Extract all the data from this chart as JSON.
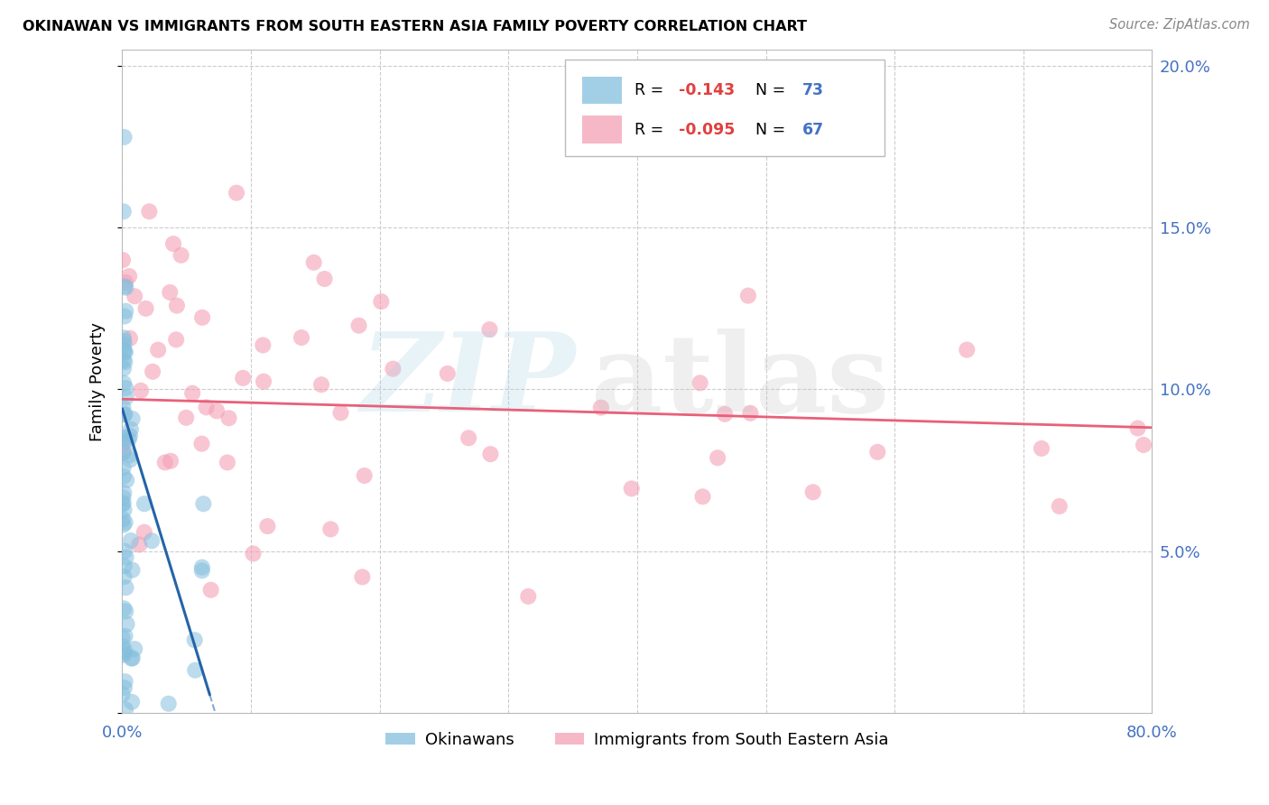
{
  "title": "OKINAWAN VS IMMIGRANTS FROM SOUTH EASTERN ASIA FAMILY POVERTY CORRELATION CHART",
  "source": "Source: ZipAtlas.com",
  "ylabel": "Family Poverty",
  "x_ticks": [
    0.0,
    0.1,
    0.2,
    0.3,
    0.4,
    0.5,
    0.6,
    0.7,
    0.8
  ],
  "x_tick_labels": [
    "0.0%",
    "",
    "",
    "",
    "",
    "",
    "",
    "",
    "80.0%"
  ],
  "y_ticks": [
    0.0,
    0.05,
    0.1,
    0.15,
    0.2
  ],
  "y_tick_labels": [
    "",
    "5.0%",
    "10.0%",
    "15.0%",
    "20.0%"
  ],
  "xlim": [
    0.0,
    0.8
  ],
  "ylim": [
    0.0,
    0.205
  ],
  "blue_color": "#85bfde",
  "pink_color": "#f4a0b5",
  "blue_line_color": "#2464a8",
  "pink_line_color": "#e8607a",
  "blue_line_intercept": 0.094,
  "blue_line_slope": -1.3,
  "blue_line_x_solid_end": 0.068,
  "blue_line_x_dash_end": 0.135,
  "pink_line_intercept": 0.097,
  "pink_line_slope": -0.011,
  "tick_color": "#4472C4",
  "grid_color": "#cccccc",
  "legend_text_color_r": "black",
  "legend_text_color_n": "#4472C4",
  "legend_val_color": "#e05050"
}
